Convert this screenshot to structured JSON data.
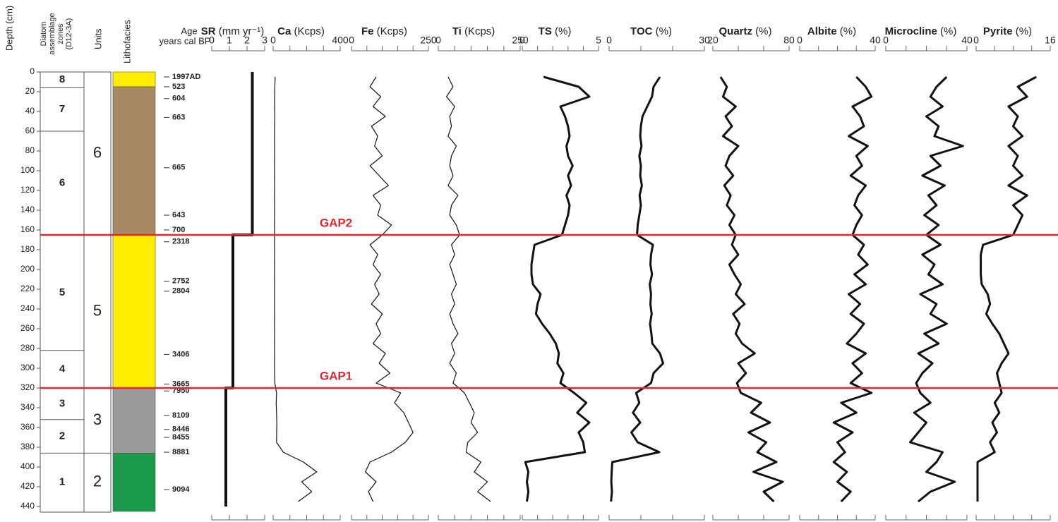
{
  "chart_data": {
    "type": "depth-profile",
    "headers": {
      "depth": "Depth (cm)",
      "zones": [
        "Diatom",
        "assemblage",
        "zones",
        "(D12-3A)"
      ],
      "units": "Units",
      "lithofacies": "Lithofacies",
      "age": [
        "Age",
        "years cal BP"
      ]
    },
    "ylim": [
      0,
      440
    ],
    "yticks": [
      0,
      20,
      40,
      60,
      80,
      100,
      120,
      140,
      160,
      180,
      200,
      220,
      240,
      260,
      280,
      300,
      320,
      340,
      360,
      380,
      400,
      420,
      440
    ],
    "zones": [
      {
        "label": "8",
        "top": 0,
        "bottom": 16
      },
      {
        "label": "7",
        "top": 16,
        "bottom": 60
      },
      {
        "label": "6",
        "top": 60,
        "bottom": 165
      },
      {
        "label": "5",
        "top": 165,
        "bottom": 282
      },
      {
        "label": "4",
        "top": 282,
        "bottom": 320
      },
      {
        "label": "3",
        "top": 320,
        "bottom": 352
      },
      {
        "label": "2",
        "top": 352,
        "bottom": 386
      },
      {
        "label": "1",
        "top": 386,
        "bottom": 445
      }
    ],
    "units": [
      {
        "label": "6",
        "top": 0,
        "bottom": 165
      },
      {
        "label": "5",
        "top": 165,
        "bottom": 320
      },
      {
        "label": "3",
        "top": 320,
        "bottom": 386
      },
      {
        "label": "2",
        "top": 386,
        "bottom": 445
      }
    ],
    "lithofacies": [
      {
        "top": 0,
        "bottom": 15,
        "color": "#ffee00"
      },
      {
        "top": 15,
        "bottom": 165,
        "color": "#a68a64"
      },
      {
        "top": 165,
        "bottom": 320,
        "color": "#ffee00"
      },
      {
        "top": 320,
        "bottom": 386,
        "color": "#9a9a9a"
      },
      {
        "top": 386,
        "bottom": 445,
        "color": "#1a9a4a"
      }
    ],
    "ages": [
      {
        "depth": 5,
        "label": "1997AD"
      },
      {
        "depth": 15,
        "label": "523"
      },
      {
        "depth": 27,
        "label": "604"
      },
      {
        "depth": 46,
        "label": "663"
      },
      {
        "depth": 97,
        "label": "665"
      },
      {
        "depth": 145,
        "label": "643"
      },
      {
        "depth": 160,
        "label": "700"
      },
      {
        "depth": 172,
        "label": "2318"
      },
      {
        "depth": 212,
        "label": "2752"
      },
      {
        "depth": 222,
        "label": "2804"
      },
      {
        "depth": 286,
        "label": "3406"
      },
      {
        "depth": 316,
        "label": "3665"
      },
      {
        "depth": 323,
        "label": "7950"
      },
      {
        "depth": 348,
        "label": "8109"
      },
      {
        "depth": 362,
        "label": "8446"
      },
      {
        "depth": 370,
        "label": "8455"
      },
      {
        "depth": 385,
        "label": "8881"
      },
      {
        "depth": 423,
        "label": "9094"
      }
    ],
    "gaps": [
      {
        "label": "GAP2",
        "depth": 165
      },
      {
        "label": "GAP1",
        "depth": 320
      }
    ],
    "gap_color": "#e3262f",
    "panels": [
      {
        "name": "SR",
        "unit": "(mm yr⁻¹)",
        "xlim": [
          0,
          3
        ],
        "xticks": [
          0,
          1,
          2,
          3
        ],
        "minor_xticks": [],
        "line_width": 4,
        "depths": [
          0,
          165,
          165,
          320,
          320,
          440
        ],
        "values": [
          2.3,
          2.3,
          1.2,
          1.2,
          0.8,
          0.8
        ]
      },
      {
        "name": "Ca",
        "unit": "(Kcps)",
        "xlim": [
          0,
          400
        ],
        "xticks": [
          0,
          400
        ],
        "minor_xticks": [
          100,
          200,
          300
        ],
        "line_width": 1.2,
        "depths": [
          5,
          15,
          25,
          35,
          45,
          55,
          65,
          75,
          85,
          95,
          105,
          115,
          125,
          135,
          145,
          155,
          165,
          175,
          185,
          195,
          205,
          215,
          225,
          235,
          245,
          255,
          265,
          275,
          285,
          295,
          305,
          315,
          325,
          335,
          345,
          355,
          365,
          375,
          385,
          395,
          405,
          415,
          425,
          435
        ],
        "values": [
          12,
          10,
          9,
          9,
          10,
          9,
          8,
          9,
          9,
          8,
          8,
          9,
          8,
          9,
          9,
          8,
          9,
          8,
          9,
          8,
          8,
          9,
          8,
          8,
          9,
          8,
          9,
          8,
          9,
          8,
          9,
          10,
          20,
          18,
          20,
          22,
          21,
          20,
          60,
          180,
          260,
          170,
          230,
          150
        ]
      },
      {
        "name": "Fe",
        "unit": "(Kcps)",
        "xlim": [
          0,
          250
        ],
        "xticks": [
          0,
          250
        ],
        "minor_xticks": [
          50,
          100,
          150,
          200
        ],
        "line_width": 1.2,
        "depths": [
          5,
          15,
          25,
          35,
          45,
          55,
          65,
          75,
          85,
          95,
          105,
          115,
          125,
          135,
          145,
          155,
          165,
          175,
          185,
          195,
          205,
          215,
          225,
          235,
          245,
          255,
          265,
          275,
          285,
          295,
          305,
          315,
          325,
          335,
          345,
          355,
          365,
          375,
          385,
          395,
          405,
          415,
          425,
          435
        ],
        "values": [
          80,
          60,
          95,
          70,
          110,
          65,
          85,
          75,
          100,
          60,
          90,
          120,
          70,
          95,
          85,
          130,
          100,
          60,
          85,
          70,
          95,
          75,
          90,
          65,
          100,
          80,
          95,
          70,
          110,
          90,
          125,
          80,
          160,
          140,
          170,
          185,
          200,
          175,
          130,
          60,
          45,
          80,
          55,
          70
        ]
      },
      {
        "name": "Ti",
        "unit": "(Kcps)",
        "xlim": [
          0,
          250
        ],
        "xticks": [
          0,
          250
        ],
        "minor_xticks": [
          50,
          100,
          150,
          200
        ],
        "line_width": 1.2,
        "depths": [
          5,
          15,
          25,
          35,
          45,
          55,
          65,
          75,
          85,
          95,
          105,
          115,
          125,
          135,
          145,
          155,
          165,
          175,
          185,
          195,
          205,
          215,
          225,
          235,
          245,
          255,
          265,
          275,
          285,
          295,
          305,
          315,
          325,
          335,
          345,
          355,
          365,
          375,
          385,
          395,
          405,
          415,
          425,
          435
        ],
        "values": [
          30,
          45,
          25,
          50,
          35,
          40,
          30,
          55,
          40,
          35,
          45,
          30,
          60,
          40,
          35,
          55,
          65,
          40,
          50,
          35,
          45,
          55,
          40,
          50,
          35,
          45,
          60,
          40,
          50,
          35,
          55,
          45,
          80,
          95,
          110,
          100,
          120,
          90,
          85,
          130,
          110,
          150,
          120,
          160
        ]
      },
      {
        "name": "TS",
        "unit": "(%)",
        "xlim": [
          0,
          5
        ],
        "xticks": [
          0,
          5
        ],
        "minor_xticks": [
          1,
          2,
          3,
          4
        ],
        "line_width": 3,
        "depths": [
          5,
          15,
          25,
          35,
          45,
          55,
          65,
          75,
          85,
          95,
          105,
          115,
          125,
          135,
          145,
          155,
          165,
          175,
          185,
          195,
          205,
          215,
          225,
          235,
          245,
          255,
          265,
          275,
          285,
          295,
          305,
          315,
          325,
          335,
          345,
          355,
          365,
          375,
          385,
          395,
          405,
          415,
          425,
          435
        ],
        "values": [
          1.4,
          3.7,
          4.4,
          2.5,
          2.8,
          3.0,
          3.1,
          2.9,
          3.0,
          3.3,
          3.0,
          3.2,
          2.9,
          3.1,
          3.0,
          2.8,
          2.6,
          0.8,
          0.7,
          0.6,
          0.6,
          0.7,
          1.2,
          1.0,
          0.9,
          1.3,
          1.8,
          2.2,
          2.4,
          2.3,
          2.7,
          2.5,
          3.4,
          4.2,
          3.6,
          4.4,
          3.7,
          4.0,
          4.1,
          0.2,
          0.4,
          0.3,
          0.4,
          0.3
        ]
      },
      {
        "name": "TOC",
        "unit": "(%)",
        "xlim": [
          0,
          30
        ],
        "xticks": [
          0,
          30
        ],
        "minor_xticks": [
          10,
          20
        ],
        "line_width": 3,
        "depths": [
          5,
          15,
          25,
          35,
          45,
          55,
          65,
          75,
          85,
          95,
          105,
          115,
          125,
          135,
          145,
          155,
          165,
          175,
          185,
          195,
          205,
          215,
          225,
          235,
          245,
          255,
          265,
          275,
          285,
          295,
          305,
          315,
          325,
          335,
          345,
          355,
          365,
          375,
          385,
          395,
          405,
          415,
          425,
          435
        ],
        "values": [
          16,
          14,
          13.5,
          12,
          10.5,
          10,
          9.8,
          10.2,
          9.5,
          10,
          9.8,
          10.3,
          9.6,
          10,
          9.5,
          9,
          8.8,
          13.8,
          13.2,
          13,
          13.5,
          12.8,
          13.2,
          13,
          13.4,
          12.9,
          13.3,
          13.6,
          16,
          17,
          14,
          13.2,
          8.5,
          9.5,
          7.5,
          9.8,
          7,
          9,
          15.8,
          1,
          0.8,
          0.7,
          0.9,
          0.6
        ]
      },
      {
        "name": "Quartz",
        "unit": "(%)",
        "xlim": [
          20,
          80
        ],
        "xticks": [
          20,
          80
        ],
        "minor_xticks": [
          40,
          60
        ],
        "line_width": 3,
        "depths": [
          5,
          15,
          25,
          35,
          45,
          55,
          65,
          75,
          85,
          95,
          105,
          115,
          125,
          135,
          145,
          155,
          165,
          175,
          185,
          195,
          205,
          215,
          225,
          235,
          245,
          255,
          265,
          275,
          285,
          295,
          305,
          315,
          325,
          335,
          345,
          355,
          365,
          375,
          385,
          395,
          405,
          415,
          425,
          435
        ],
        "values": [
          26,
          31,
          28,
          38,
          30,
          35,
          28,
          40,
          33,
          30,
          36,
          29,
          34,
          31,
          37,
          33,
          38,
          35,
          40,
          33,
          37,
          42,
          38,
          45,
          36,
          41,
          38,
          43,
          53,
          40,
          46,
          39,
          42,
          58,
          50,
          65,
          48,
          62,
          55,
          70,
          52,
          75,
          60,
          68
        ]
      },
      {
        "name": "Albite",
        "unit": "(%)",
        "xlim": [
          0,
          40
        ],
        "xticks": [
          0,
          40
        ],
        "minor_xticks": [
          10,
          20,
          30
        ],
        "line_width": 3,
        "depths": [
          5,
          15,
          25,
          35,
          45,
          55,
          65,
          75,
          85,
          95,
          105,
          115,
          125,
          135,
          145,
          155,
          165,
          175,
          185,
          195,
          205,
          215,
          225,
          235,
          245,
          255,
          265,
          275,
          285,
          295,
          305,
          315,
          325,
          335,
          345,
          355,
          365,
          375,
          385,
          395,
          405,
          415,
          425,
          435
        ],
        "values": [
          30,
          35,
          38,
          28,
          32,
          34,
          26,
          36,
          30,
          33,
          27,
          35,
          31,
          29,
          33,
          30,
          28,
          34,
          31,
          36,
          29,
          35,
          26,
          32,
          27,
          34,
          30,
          25,
          35,
          28,
          33,
          27,
          38,
          22,
          30,
          18,
          28,
          20,
          24,
          18,
          25,
          20,
          27,
          22
        ]
      },
      {
        "name": "Microcline",
        "unit": "(%)",
        "xlim": [
          0,
          40
        ],
        "xticks": [
          0,
          40
        ],
        "minor_xticks": [
          10,
          20,
          30
        ],
        "line_width": 3,
        "depths": [
          5,
          15,
          25,
          35,
          45,
          55,
          65,
          75,
          85,
          95,
          105,
          115,
          125,
          135,
          145,
          155,
          165,
          175,
          185,
          195,
          205,
          215,
          225,
          235,
          245,
          255,
          265,
          275,
          285,
          295,
          305,
          315,
          325,
          335,
          345,
          355,
          365,
          375,
          385,
          395,
          405,
          415,
          425,
          435
        ],
        "values": [
          30,
          25,
          22,
          28,
          20,
          26,
          24,
          38,
          22,
          27,
          18,
          29,
          21,
          25,
          19,
          26,
          20,
          27,
          18,
          24,
          21,
          28,
          17,
          25,
          22,
          30,
          19,
          26,
          16,
          23,
          18,
          15,
          17,
          22,
          14,
          20,
          16,
          12,
          28,
          25,
          20,
          34,
          22,
          16
        ]
      },
      {
        "name": "Pyrite",
        "unit": "(%)",
        "xlim": [
          0,
          16
        ],
        "xticks": [
          0,
          16
        ],
        "minor_xticks": [
          4,
          8,
          12
        ],
        "line_width": 3,
        "depths": [
          5,
          15,
          25,
          35,
          45,
          55,
          65,
          75,
          85,
          95,
          105,
          115,
          125,
          135,
          145,
          155,
          165,
          175,
          185,
          195,
          205,
          215,
          225,
          235,
          245,
          255,
          265,
          275,
          285,
          295,
          305,
          315,
          325,
          335,
          345,
          355,
          365,
          375,
          385,
          395,
          405,
          415,
          425,
          435
        ],
        "values": [
          13,
          9,
          11,
          7,
          9,
          8,
          10,
          7,
          9,
          8,
          10,
          7,
          11,
          8,
          10,
          9,
          8,
          1.5,
          1,
          1,
          1,
          1.2,
          2.5,
          3,
          2.2,
          3.5,
          5,
          6,
          7,
          5.5,
          4.5,
          5,
          5.5,
          4,
          5,
          3.5,
          4.5,
          3,
          4,
          0.3,
          0.3,
          0.3,
          0.3,
          0.3
        ]
      }
    ]
  }
}
